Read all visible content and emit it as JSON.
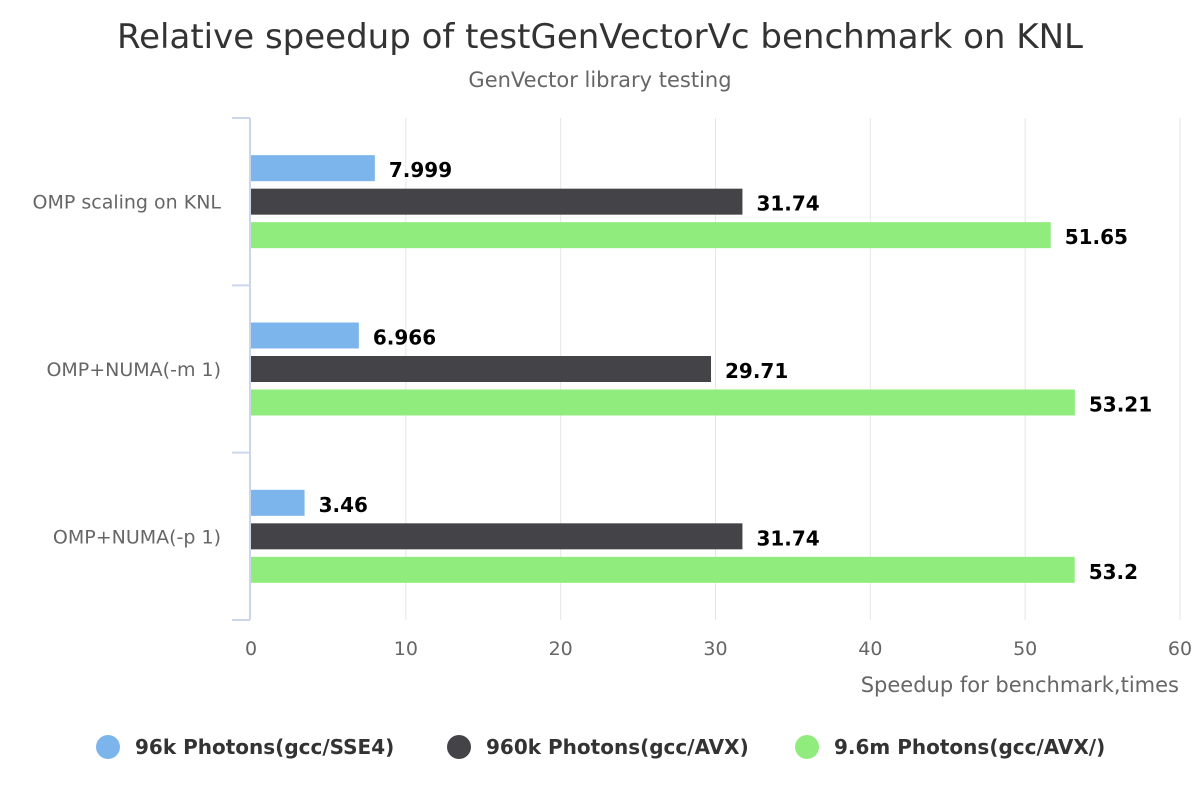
{
  "chart_data": {
    "type": "bar",
    "orientation": "horizontal",
    "title": "Relative speedup of testGenVectorVc benchmark on KNL",
    "subtitle": "GenVector library testing",
    "categories": [
      "OMP scaling on KNL",
      "OMP+NUMA(-m 1)",
      "OMP+NUMA(-p 1)"
    ],
    "series": [
      {
        "name": "96k Photons(gcc/SSE4)",
        "color": "#7cb5ec",
        "values": [
          7.999,
          6.966,
          3.46
        ],
        "labels": [
          "7.999",
          "6.966",
          "3.46"
        ]
      },
      {
        "name": "960k Photons(gcc/AVX)",
        "color": "#434348",
        "values": [
          31.74,
          29.71,
          31.74
        ],
        "labels": [
          "31.74",
          "29.71",
          "31.74"
        ]
      },
      {
        "name": "9.6m Photons(gcc/AVX/)",
        "color": "#90ed7d",
        "values": [
          51.65,
          53.21,
          53.2
        ],
        "labels": [
          "51.65",
          "53.21",
          "53.2"
        ]
      }
    ],
    "xlabel": "Speedup for benchmark,times",
    "xlim": [
      0,
      60
    ],
    "xticks": [
      0,
      10,
      20,
      30,
      40,
      50,
      60
    ],
    "grid": true,
    "legend": "bottom"
  }
}
